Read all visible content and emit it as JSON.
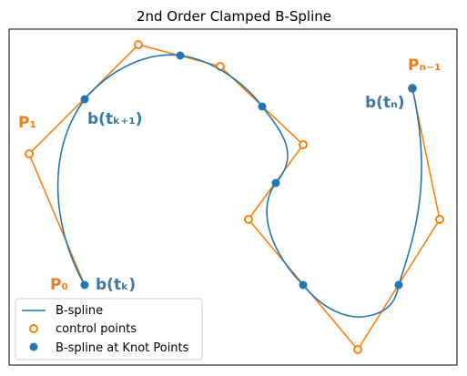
{
  "title": "2nd Order Clamped B-Spline",
  "colors": {
    "spline": "#1f77b4",
    "control": "#ff7f0e",
    "label_blue": "#3a78a6",
    "label_orange": "#ee7e1b"
  },
  "labels": {
    "p0": "P₀",
    "p1": "P₁",
    "pn1": "Pₙ₋₁",
    "btk": "b(tₖ)",
    "btk1": "b(tₖ₊₁)",
    "btn": "b(tₙ)"
  },
  "legend": {
    "spline": "B-spline",
    "control": "control points",
    "knots": "B-spline at Knot Points"
  }
}
